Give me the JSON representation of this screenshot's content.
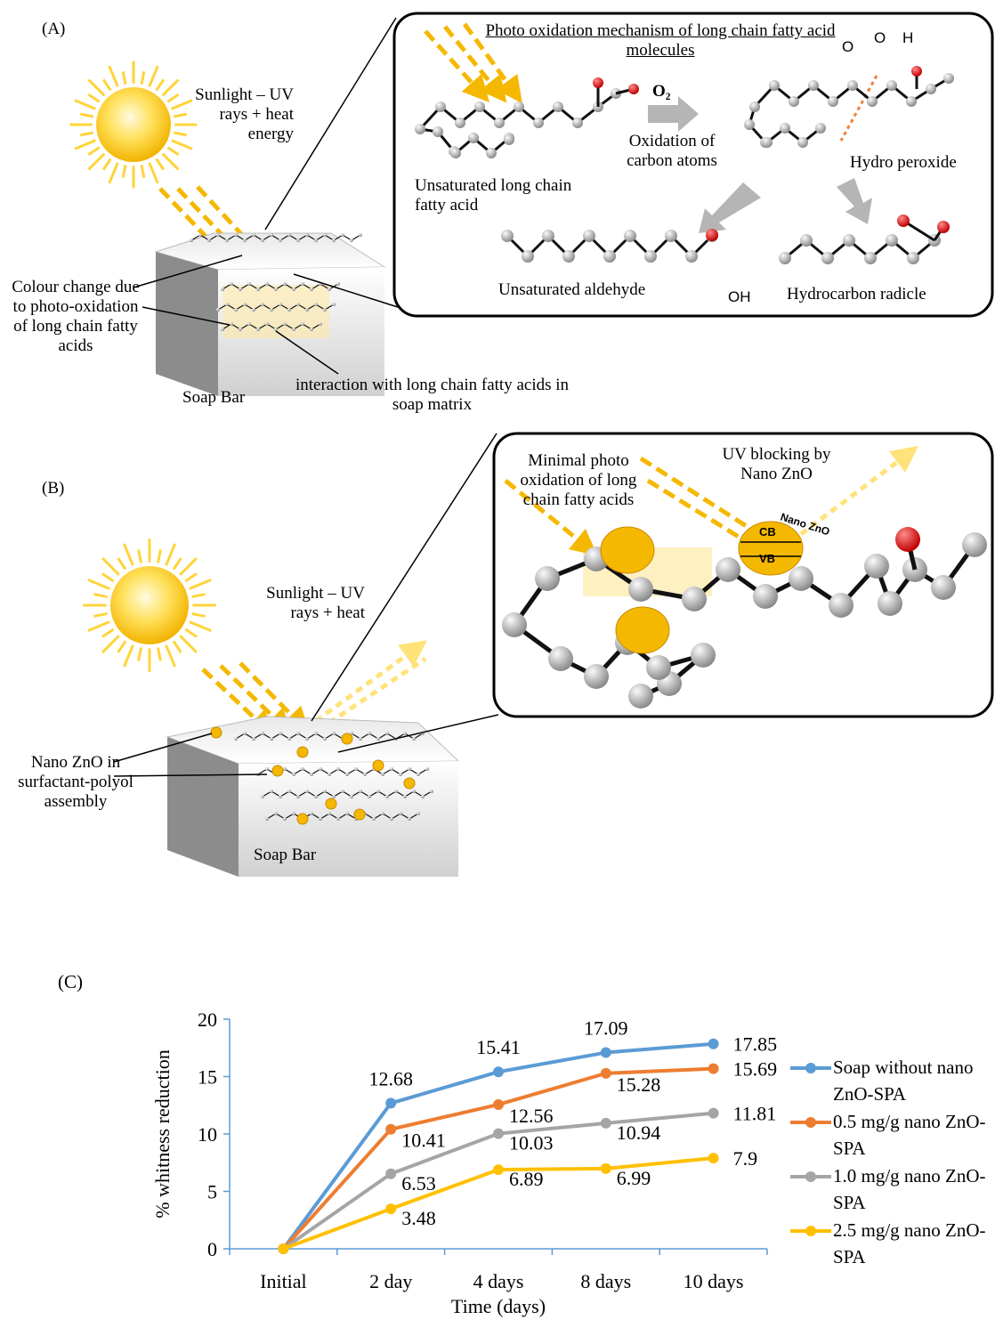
{
  "panel_a": {
    "label": "(A)",
    "sunlight": "Sunlight – UV rays +  heat energy",
    "colour_change": "Colour change due to photo-oxidation of long chain fatty acids",
    "soap_bar": "Soap Bar",
    "interaction": "interaction with long chain fatty acids in soap matrix",
    "inset": {
      "title": "Photo oxidation mechanism of long chain fatty acid molecules",
      "reagent": "O₂",
      "oxidation": "Oxidation of carbon atoms",
      "fatty_acid": "Unsaturated long chain fatty acid",
      "peroxide_atoms": [
        "O",
        "O",
        "H"
      ],
      "hydro_peroxide": "Hydro peroxide",
      "aldehyde": "Unsaturated aldehyde",
      "hydroxyl": "OH",
      "radicle": "Hydrocarbon radicle"
    }
  },
  "panel_b": {
    "label": "(B)",
    "sunlight": "Sunlight – UV rays +  heat",
    "nano_zno": "Nano ZnO in surfactant-polyol assembly",
    "soap_bar": "Soap Bar",
    "inset": {
      "minimal": "Minimal photo oxidation of long chain fatty acids",
      "blocking": "UV blocking by Nano ZnO",
      "particle": "Nano ZnO",
      "cb": "CB",
      "vb": "VB"
    }
  },
  "chart_data": {
    "type": "line",
    "label": "(C)",
    "y_label": "% whitness reduction",
    "x_label": "Time (days)",
    "categories": [
      "Initial",
      "2 day",
      "4 days",
      "8 days",
      "10 days"
    ],
    "ylim": [
      0,
      20
    ],
    "yticks": [
      0,
      5,
      10,
      15,
      20
    ],
    "series": [
      {
        "name": "Soap without nano ZnO-SPA",
        "color": "#5b9bd5",
        "values": [
          0,
          12.68,
          15.41,
          17.09,
          17.85
        ],
        "value_labels": [
          null,
          "12.68",
          "15.41",
          "17.09",
          "17.85"
        ]
      },
      {
        "name": "0.5 mg/g nano ZnO-SPA",
        "color": "#ed7d31",
        "values": [
          0,
          10.41,
          12.56,
          15.28,
          15.69
        ],
        "value_labels": [
          null,
          "10.41",
          "12.56",
          "15.28",
          "15.69"
        ]
      },
      {
        "name": "1.0 mg/g nano ZnO-SPA",
        "color": "#a5a5a5",
        "values": [
          0,
          6.53,
          10.03,
          10.94,
          11.81
        ],
        "value_labels": [
          null,
          "6.53",
          "10.03",
          "10.94",
          "11.81"
        ]
      },
      {
        "name": "2.5 mg/g nano ZnO-SPA",
        "color": "#ffc000",
        "values": [
          0,
          3.48,
          6.89,
          6.99,
          7.9
        ],
        "value_labels": [
          null,
          "3.48",
          "6.89",
          "6.99",
          "7.9"
        ]
      }
    ]
  }
}
